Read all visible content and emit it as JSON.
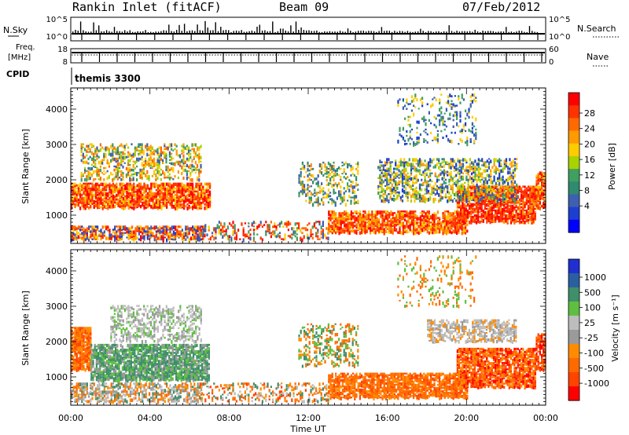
{
  "header": {
    "station": "Rankin Inlet (fitACF)",
    "beam": "Beam 09",
    "date": "07/Feb/2012"
  },
  "panels": {
    "nsky": {
      "label": "N.Sky",
      "right_label": "N.Search",
      "ticks_left": [
        "10^5",
        "10^0"
      ],
      "ticks_right": [
        "10^5",
        "10^0"
      ]
    },
    "freq": {
      "label_line1": "Freq.",
      "label_line2": "[MHz]",
      "right_label": "Nave",
      "ticks_left": [
        "18",
        "8"
      ],
      "ticks_right": [
        "60",
        "0"
      ]
    },
    "cpid": {
      "label": "CPID",
      "value": "themis 3300"
    }
  },
  "colorbars": {
    "power": {
      "label": "Power [dB]",
      "ticks": [
        "28",
        "24",
        "20",
        "16",
        "12",
        "8",
        "4"
      ],
      "colors": [
        "#ff0000",
        "#ff3300",
        "#ff6a00",
        "#ff9a00",
        "#ffcc00",
        "#a8d200",
        "#40a060",
        "#2f8a70",
        "#3f5fb0",
        "#1d3fd0",
        "#0000ff"
      ]
    },
    "velocity": {
      "label": "Velocity [m s⁻¹]",
      "ticks": [
        "1000",
        "500",
        "100",
        "25",
        "-25",
        "-100",
        "-500",
        "-1000"
      ],
      "colors": [
        "#1f2fd0",
        "#2a5fa0",
        "#3f8f6a",
        "#5fbf40",
        "#bdbdbd",
        "#9a9a9a",
        "#ff8c00",
        "#ff6a00",
        "#ff4400",
        "#ff0000"
      ]
    }
  },
  "chart_data": [
    {
      "type": "heatmap",
      "name": "Power",
      "ylabel": "Slant Range [km]",
      "xlabel": "Time UT",
      "xticks": [
        "00:00",
        "04:00",
        "08:00",
        "12:00",
        "16:00",
        "20:00",
        "00:00"
      ],
      "yticks": [
        "1000",
        "2000",
        "3000",
        "4000"
      ],
      "ylim": [
        200,
        4600
      ],
      "xlim_hours": [
        0,
        24
      ],
      "scale": "Power [dB]",
      "scale_range": [
        0,
        30
      ]
    },
    {
      "type": "heatmap",
      "name": "Velocity",
      "ylabel": "Slant Range [km]",
      "xlabel": "Time UT",
      "xticks": [
        "00:00",
        "04:00",
        "08:00",
        "12:00",
        "16:00",
        "20:00",
        "00:00"
      ],
      "yticks": [
        "1000",
        "2000",
        "3000",
        "4000"
      ],
      "ylim": [
        200,
        4600
      ],
      "xlim_hours": [
        0,
        24
      ],
      "scale": "Velocity [m s-1]",
      "scale_range": [
        -1000,
        1000
      ]
    }
  ],
  "axis": {
    "xlabel": "Time UT",
    "xticks": [
      "00:00",
      "04:00",
      "08:00",
      "12:00",
      "16:00",
      "20:00",
      "00:00"
    ]
  }
}
